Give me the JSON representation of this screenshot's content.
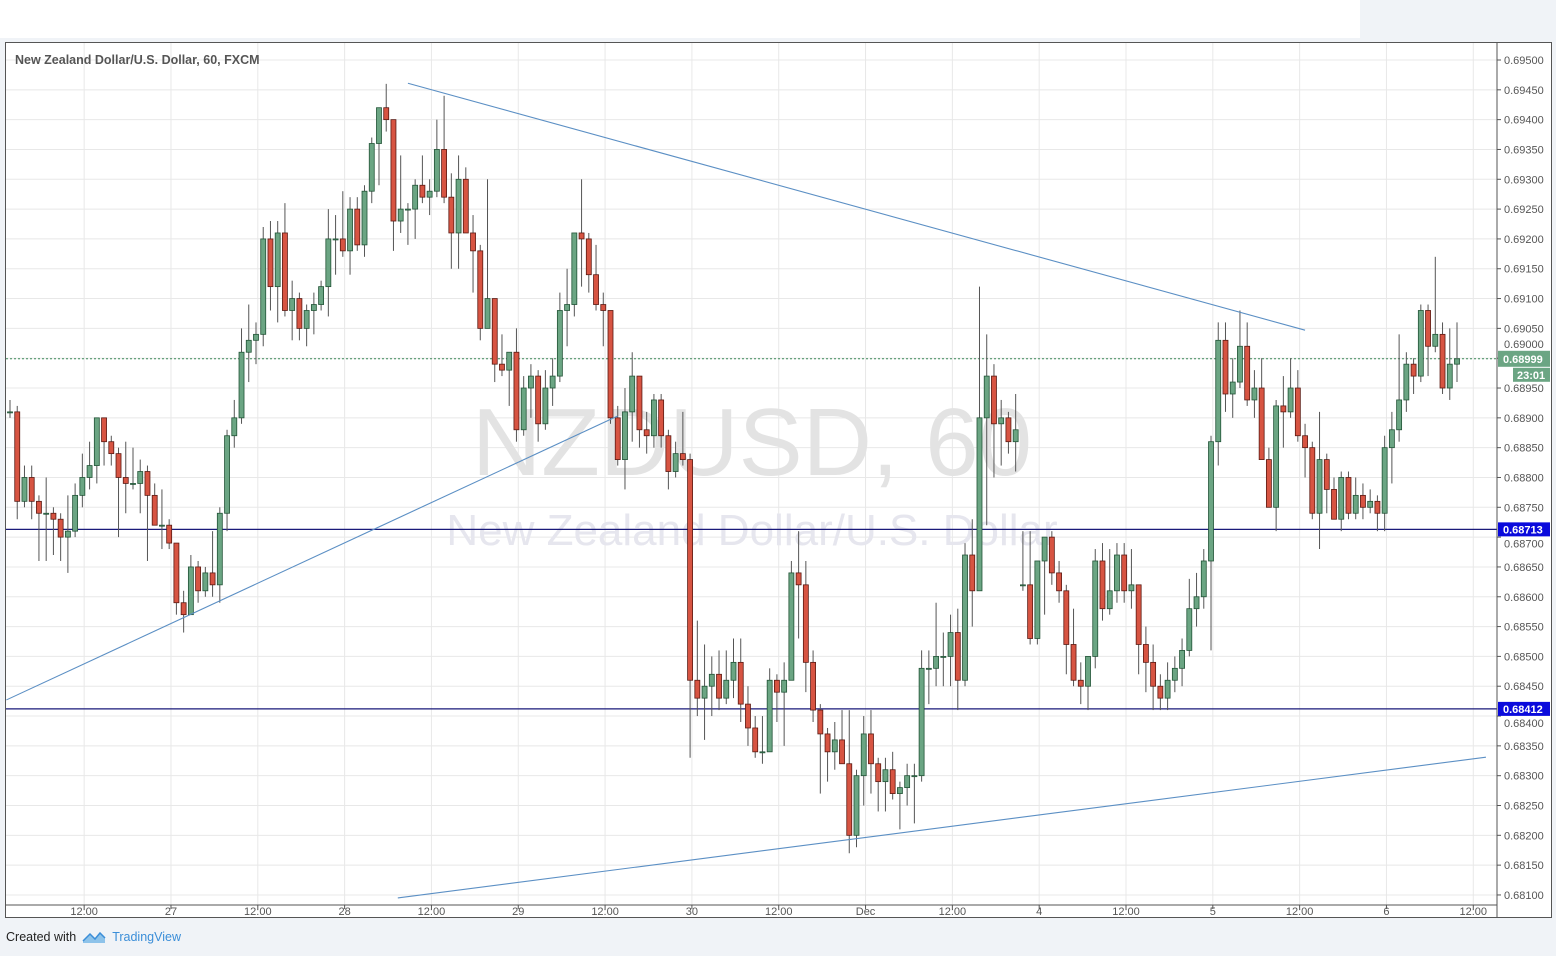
{
  "header": {
    "title": "New Zealand Dollar/U.S. Dollar, 60, FXCM"
  },
  "watermark": {
    "symbol": "NZDUSD, 60",
    "name": "New Zealand Dollar/U.S. Dollar"
  },
  "footer": {
    "created_with": "Created with",
    "brand": "TradingView"
  },
  "colors": {
    "up": "#6ba583",
    "up_border": "#225437",
    "down": "#d75442",
    "down_border": "#5b1a13",
    "trendline": "#5b8fc4",
    "level_line": "#1a1a7a",
    "level_label": "#0a0adc",
    "last_price": "#6ba583",
    "grid": "#e8e8e8"
  },
  "chart_data": {
    "type": "candlestick",
    "title": "New Zealand Dollar/U.S. Dollar, 60, FXCM",
    "interval": "60",
    "ylim": [
      0.681,
      0.695
    ],
    "grid": true,
    "y_ticks": [
      "0.68100",
      "0.68150",
      "0.68200",
      "0.68250",
      "0.68300",
      "0.68350",
      "0.68400",
      "0.68450",
      "0.68500",
      "0.68550",
      "0.68600",
      "0.68650",
      "0.68700",
      "0.68750",
      "0.68800",
      "0.68850",
      "0.68900",
      "0.68950",
      "0.69000",
      "0.69050",
      "0.69100",
      "0.69150",
      "0.69200",
      "0.69250",
      "0.69300",
      "0.69350",
      "0.69400",
      "0.69450",
      "0.69500"
    ],
    "x_ticks": [
      "12:00",
      "27",
      "12:00",
      "28",
      "12:00",
      "29",
      "12:00",
      "30",
      "12:00",
      "Dec",
      "12:00",
      "4",
      "12:00",
      "5",
      "12:00",
      "6",
      "12:00"
    ],
    "last_price": {
      "value": "0.68999",
      "countdown": "23:01"
    },
    "horizontal_levels": [
      {
        "value": "0.68713"
      },
      {
        "value": "0.68412"
      }
    ],
    "trendlines": [
      {
        "from": {
          "bar": 55,
          "price": 0.69461
        },
        "to": {
          "bar": 179,
          "price": 0.69047
        }
      },
      {
        "from": {
          "bar": -0.5,
          "price": 0.68427
        },
        "to": {
          "bar": 84,
          "price": 0.68903
        }
      },
      {
        "from": {
          "bar": 53.6,
          "price": 0.68095
        },
        "to": {
          "bar": 204,
          "price": 0.68331
        }
      }
    ],
    "candles_format": [
      "open",
      "high",
      "low",
      "close"
    ],
    "candles": [
      [
        0.6891,
        0.6893,
        0.689,
        0.6891
      ],
      [
        0.6891,
        0.6892,
        0.6873,
        0.6876
      ],
      [
        0.6876,
        0.6882,
        0.6875,
        0.688
      ],
      [
        0.688,
        0.6882,
        0.6873,
        0.6876
      ],
      [
        0.6876,
        0.6877,
        0.6866,
        0.6874
      ],
      [
        0.6874,
        0.688,
        0.6866,
        0.6874
      ],
      [
        0.6874,
        0.6875,
        0.6867,
        0.6873
      ],
      [
        0.6873,
        0.6874,
        0.6866,
        0.687
      ],
      [
        0.687,
        0.6877,
        0.6864,
        0.6871
      ],
      [
        0.6871,
        0.6879,
        0.687,
        0.6877
      ],
      [
        0.6877,
        0.6884,
        0.6875,
        0.688
      ],
      [
        0.688,
        0.6886,
        0.6878,
        0.6882
      ],
      [
        0.6882,
        0.689,
        0.6879,
        0.689
      ],
      [
        0.689,
        0.689,
        0.6882,
        0.6886
      ],
      [
        0.6886,
        0.6887,
        0.6882,
        0.6884
      ],
      [
        0.6884,
        0.6885,
        0.687,
        0.688
      ],
      [
        0.688,
        0.6886,
        0.6874,
        0.6879
      ],
      [
        0.6879,
        0.6885,
        0.6878,
        0.6879
      ],
      [
        0.6879,
        0.6883,
        0.6874,
        0.6881
      ],
      [
        0.6881,
        0.6882,
        0.6866,
        0.6877
      ],
      [
        0.6877,
        0.6879,
        0.6872,
        0.6872
      ],
      [
        0.6872,
        0.6878,
        0.6868,
        0.6872
      ],
      [
        0.6872,
        0.6873,
        0.6868,
        0.6869
      ],
      [
        0.6869,
        0.6869,
        0.6857,
        0.6859
      ],
      [
        0.6859,
        0.6861,
        0.6854,
        0.6857
      ],
      [
        0.6857,
        0.6867,
        0.6857,
        0.6865
      ],
      [
        0.6865,
        0.6866,
        0.6859,
        0.6861
      ],
      [
        0.6861,
        0.6865,
        0.686,
        0.6864
      ],
      [
        0.6864,
        0.6871,
        0.686,
        0.6862
      ],
      [
        0.6862,
        0.6875,
        0.6859,
        0.6874
      ],
      [
        0.6874,
        0.6888,
        0.6871,
        0.6887
      ],
      [
        0.6887,
        0.6893,
        0.6885,
        0.689
      ],
      [
        0.689,
        0.6905,
        0.6889,
        0.6901
      ],
      [
        0.6901,
        0.6909,
        0.6896,
        0.6903
      ],
      [
        0.6903,
        0.6906,
        0.6899,
        0.6904
      ],
      [
        0.6904,
        0.6922,
        0.6902,
        0.692
      ],
      [
        0.692,
        0.6923,
        0.6908,
        0.6912
      ],
      [
        0.6912,
        0.6923,
        0.6906,
        0.6921
      ],
      [
        0.6921,
        0.6926,
        0.6907,
        0.6908
      ],
      [
        0.6908,
        0.6913,
        0.6903,
        0.691
      ],
      [
        0.691,
        0.6911,
        0.6903,
        0.6905
      ],
      [
        0.6905,
        0.6909,
        0.6902,
        0.6908
      ],
      [
        0.6908,
        0.6911,
        0.6904,
        0.6909
      ],
      [
        0.6909,
        0.6913,
        0.6908,
        0.6912
      ],
      [
        0.6912,
        0.6925,
        0.6907,
        0.692
      ],
      [
        0.692,
        0.6924,
        0.6914,
        0.692
      ],
      [
        0.692,
        0.6928,
        0.6917,
        0.6918
      ],
      [
        0.6918,
        0.6927,
        0.6914,
        0.6925
      ],
      [
        0.6925,
        0.6927,
        0.6918,
        0.6919
      ],
      [
        0.6919,
        0.6929,
        0.6917,
        0.6928
      ],
      [
        0.6928,
        0.6937,
        0.6926,
        0.6936
      ],
      [
        0.6936,
        0.6942,
        0.6929,
        0.6942
      ],
      [
        0.6942,
        0.6946,
        0.6938,
        0.694
      ],
      [
        0.694,
        0.694,
        0.6918,
        0.6923
      ],
      [
        0.6923,
        0.6934,
        0.6921,
        0.6925
      ],
      [
        0.6925,
        0.6926,
        0.6919,
        0.6925
      ],
      [
        0.6925,
        0.693,
        0.692,
        0.6929
      ],
      [
        0.6929,
        0.6934,
        0.6926,
        0.6927
      ],
      [
        0.6927,
        0.693,
        0.6924,
        0.6928
      ],
      [
        0.6928,
        0.694,
        0.6927,
        0.6935
      ],
      [
        0.6935,
        0.6944,
        0.6926,
        0.6927
      ],
      [
        0.6927,
        0.6931,
        0.6915,
        0.6921
      ],
      [
        0.6921,
        0.6934,
        0.6915,
        0.693
      ],
      [
        0.693,
        0.6932,
        0.6921,
        0.6921
      ],
      [
        0.6921,
        0.6924,
        0.6911,
        0.6918
      ],
      [
        0.6918,
        0.6919,
        0.6903,
        0.6905
      ],
      [
        0.6905,
        0.693,
        0.6905,
        0.691
      ],
      [
        0.691,
        0.691,
        0.6896,
        0.6899
      ],
      [
        0.6899,
        0.6904,
        0.6897,
        0.6898
      ],
      [
        0.6898,
        0.6901,
        0.6892,
        0.6901
      ],
      [
        0.6901,
        0.6905,
        0.6886,
        0.6888
      ],
      [
        0.6888,
        0.6897,
        0.6887,
        0.6895
      ],
      [
        0.6895,
        0.6899,
        0.689,
        0.6897
      ],
      [
        0.6897,
        0.6898,
        0.6886,
        0.6889
      ],
      [
        0.6889,
        0.6898,
        0.6888,
        0.6895
      ],
      [
        0.6895,
        0.69,
        0.6892,
        0.6897
      ],
      [
        0.6897,
        0.6911,
        0.6896,
        0.6908
      ],
      [
        0.6908,
        0.6915,
        0.6902,
        0.6909
      ],
      [
        0.6909,
        0.6921,
        0.6907,
        0.6921
      ],
      [
        0.6921,
        0.693,
        0.6912,
        0.692
      ],
      [
        0.692,
        0.6921,
        0.6911,
        0.6914
      ],
      [
        0.6914,
        0.6919,
        0.6908,
        0.6909
      ],
      [
        0.6909,
        0.6911,
        0.6902,
        0.6908
      ],
      [
        0.6908,
        0.6908,
        0.6889,
        0.689
      ],
      [
        0.689,
        0.6892,
        0.6882,
        0.6883
      ],
      [
        0.6883,
        0.6895,
        0.6878,
        0.6891
      ],
      [
        0.6891,
        0.6901,
        0.6886,
        0.6897
      ],
      [
        0.6897,
        0.6897,
        0.6885,
        0.6888
      ],
      [
        0.6888,
        0.6891,
        0.6884,
        0.6887
      ],
      [
        0.6887,
        0.6894,
        0.6885,
        0.6893
      ],
      [
        0.6893,
        0.6894,
        0.6885,
        0.6887
      ],
      [
        0.6887,
        0.6888,
        0.6878,
        0.6881
      ],
      [
        0.6881,
        0.6886,
        0.688,
        0.6884
      ],
      [
        0.6884,
        0.6891,
        0.6882,
        0.6883
      ],
      [
        0.6883,
        0.6884,
        0.6833,
        0.6846
      ],
      [
        0.6846,
        0.6856,
        0.684,
        0.6843
      ],
      [
        0.6843,
        0.6852,
        0.6836,
        0.6845
      ],
      [
        0.6845,
        0.685,
        0.684,
        0.6847
      ],
      [
        0.6847,
        0.6851,
        0.6841,
        0.6843
      ],
      [
        0.6843,
        0.6851,
        0.6842,
        0.6846
      ],
      [
        0.6846,
        0.6853,
        0.6843,
        0.6849
      ],
      [
        0.6849,
        0.6853,
        0.6839,
        0.6842
      ],
      [
        0.6842,
        0.6845,
        0.6835,
        0.6838
      ],
      [
        0.6838,
        0.684,
        0.6833,
        0.6834
      ],
      [
        0.6834,
        0.684,
        0.6832,
        0.6834
      ],
      [
        0.6834,
        0.6848,
        0.6834,
        0.6846
      ],
      [
        0.6846,
        0.6847,
        0.6839,
        0.6844
      ],
      [
        0.6844,
        0.6849,
        0.6835,
        0.6846
      ],
      [
        0.6846,
        0.6866,
        0.6846,
        0.6864
      ],
      [
        0.6864,
        0.6871,
        0.6853,
        0.6862
      ],
      [
        0.6862,
        0.6866,
        0.6844,
        0.6849
      ],
      [
        0.6849,
        0.6851,
        0.6839,
        0.6841
      ],
      [
        0.6841,
        0.6842,
        0.6827,
        0.6837
      ],
      [
        0.6837,
        0.6838,
        0.6829,
        0.6834
      ],
      [
        0.6834,
        0.6839,
        0.6831,
        0.6836
      ],
      [
        0.6836,
        0.6841,
        0.6832,
        0.6832
      ],
      [
        0.6832,
        0.6841,
        0.6817,
        0.682
      ],
      [
        0.682,
        0.6831,
        0.6818,
        0.683
      ],
      [
        0.683,
        0.684,
        0.6825,
        0.6837
      ],
      [
        0.6837,
        0.6841,
        0.6827,
        0.6832
      ],
      [
        0.6832,
        0.6833,
        0.6824,
        0.6829
      ],
      [
        0.6829,
        0.6833,
        0.6824,
        0.6831
      ],
      [
        0.6831,
        0.6834,
        0.6826,
        0.6827
      ],
      [
        0.6827,
        0.6829,
        0.6821,
        0.6828
      ],
      [
        0.6828,
        0.6832,
        0.6825,
        0.683
      ],
      [
        0.683,
        0.6832,
        0.6822,
        0.683
      ],
      [
        0.683,
        0.6851,
        0.6829,
        0.6848
      ],
      [
        0.6848,
        0.6851,
        0.6842,
        0.6848
      ],
      [
        0.6848,
        0.6859,
        0.6845,
        0.685
      ],
      [
        0.685,
        0.6854,
        0.6845,
        0.685
      ],
      [
        0.685,
        0.6857,
        0.6845,
        0.6854
      ],
      [
        0.6854,
        0.6858,
        0.6841,
        0.6846
      ],
      [
        0.6846,
        0.6869,
        0.6845,
        0.6867
      ],
      [
        0.6867,
        0.6873,
        0.6855,
        0.6861
      ],
      [
        0.6861,
        0.6912,
        0.6861,
        0.689
      ],
      [
        0.689,
        0.6904,
        0.6872,
        0.6897
      ],
      [
        0.6897,
        0.6899,
        0.688,
        0.6889
      ],
      [
        0.6889,
        0.6893,
        0.6882,
        0.689
      ],
      [
        0.689,
        0.6891,
        0.6884,
        0.6886
      ],
      [
        0.6886,
        0.6894,
        0.6881,
        0.6888
      ],
      [
        0.6862,
        0.6871,
        0.6861,
        0.6862
      ],
      [
        0.6862,
        0.6871,
        0.6852,
        0.6853
      ],
      [
        0.6853,
        0.6866,
        0.6852,
        0.6866
      ],
      [
        0.6866,
        0.687,
        0.6857,
        0.687
      ],
      [
        0.687,
        0.6871,
        0.6862,
        0.6864
      ],
      [
        0.6864,
        0.6866,
        0.6859,
        0.6861
      ],
      [
        0.6861,
        0.6862,
        0.6847,
        0.6852
      ],
      [
        0.6852,
        0.6858,
        0.6845,
        0.6846
      ],
      [
        0.6846,
        0.6849,
        0.6842,
        0.6845
      ],
      [
        0.6845,
        0.685,
        0.6841,
        0.685
      ],
      [
        0.685,
        0.6868,
        0.6848,
        0.6866
      ],
      [
        0.6866,
        0.6869,
        0.6856,
        0.6858
      ],
      [
        0.6858,
        0.6868,
        0.6857,
        0.6861
      ],
      [
        0.6861,
        0.6869,
        0.6859,
        0.6867
      ],
      [
        0.6867,
        0.6869,
        0.6859,
        0.6861
      ],
      [
        0.6861,
        0.6868,
        0.6858,
        0.6862
      ],
      [
        0.6862,
        0.6862,
        0.6847,
        0.6852
      ],
      [
        0.6852,
        0.6855,
        0.6844,
        0.6849
      ],
      [
        0.6849,
        0.6852,
        0.6841,
        0.6845
      ],
      [
        0.6845,
        0.6847,
        0.6841,
        0.6843
      ],
      [
        0.6843,
        0.6849,
        0.6841,
        0.6846
      ],
      [
        0.6846,
        0.685,
        0.6844,
        0.6848
      ],
      [
        0.6848,
        0.6853,
        0.6845,
        0.6851
      ],
      [
        0.6851,
        0.6863,
        0.685,
        0.6858
      ],
      [
        0.6858,
        0.6864,
        0.6855,
        0.686
      ],
      [
        0.686,
        0.6868,
        0.6858,
        0.6866
      ],
      [
        0.6866,
        0.6887,
        0.6851,
        0.6886
      ],
      [
        0.6886,
        0.6906,
        0.6882,
        0.6903
      ],
      [
        0.6903,
        0.6906,
        0.6891,
        0.6894
      ],
      [
        0.6894,
        0.69,
        0.689,
        0.6896
      ],
      [
        0.6896,
        0.6908,
        0.6895,
        0.6902
      ],
      [
        0.6902,
        0.6906,
        0.6892,
        0.6893
      ],
      [
        0.6893,
        0.6898,
        0.689,
        0.6895
      ],
      [
        0.6895,
        0.69,
        0.6883,
        0.6883
      ],
      [
        0.6883,
        0.6885,
        0.6875,
        0.6875
      ],
      [
        0.6875,
        0.6893,
        0.6871,
        0.6892
      ],
      [
        0.6892,
        0.6897,
        0.6885,
        0.6891
      ],
      [
        0.6891,
        0.69,
        0.689,
        0.6895
      ],
      [
        0.6895,
        0.6898,
        0.6886,
        0.6887
      ],
      [
        0.6887,
        0.6889,
        0.688,
        0.6885
      ],
      [
        0.6885,
        0.6886,
        0.6873,
        0.6874
      ],
      [
        0.6874,
        0.6891,
        0.6868,
        0.6883
      ],
      [
        0.6883,
        0.6884,
        0.6874,
        0.6878
      ],
      [
        0.6878,
        0.688,
        0.6873,
        0.6873
      ],
      [
        0.6873,
        0.6881,
        0.6871,
        0.688
      ],
      [
        0.688,
        0.6881,
        0.6873,
        0.6874
      ],
      [
        0.6874,
        0.688,
        0.6873,
        0.6877
      ],
      [
        0.6877,
        0.6879,
        0.6873,
        0.6875
      ],
      [
        0.6875,
        0.6878,
        0.6874,
        0.6876
      ],
      [
        0.6876,
        0.6877,
        0.6871,
        0.6874
      ],
      [
        0.6874,
        0.6887,
        0.6871,
        0.6885
      ],
      [
        0.6885,
        0.6891,
        0.6879,
        0.6888
      ],
      [
        0.6888,
        0.6904,
        0.6886,
        0.6893
      ],
      [
        0.6893,
        0.6901,
        0.6891,
        0.6899
      ],
      [
        0.6899,
        0.69,
        0.6894,
        0.6897
      ],
      [
        0.6897,
        0.6909,
        0.6896,
        0.6908
      ],
      [
        0.6908,
        0.6909,
        0.6897,
        0.6902
      ],
      [
        0.6902,
        0.6917,
        0.6901,
        0.6904
      ],
      [
        0.6904,
        0.6906,
        0.6894,
        0.6895
      ],
      [
        0.6895,
        0.6905,
        0.6893,
        0.6899
      ],
      [
        0.6899,
        0.6906,
        0.6896,
        0.68999
      ]
    ]
  }
}
